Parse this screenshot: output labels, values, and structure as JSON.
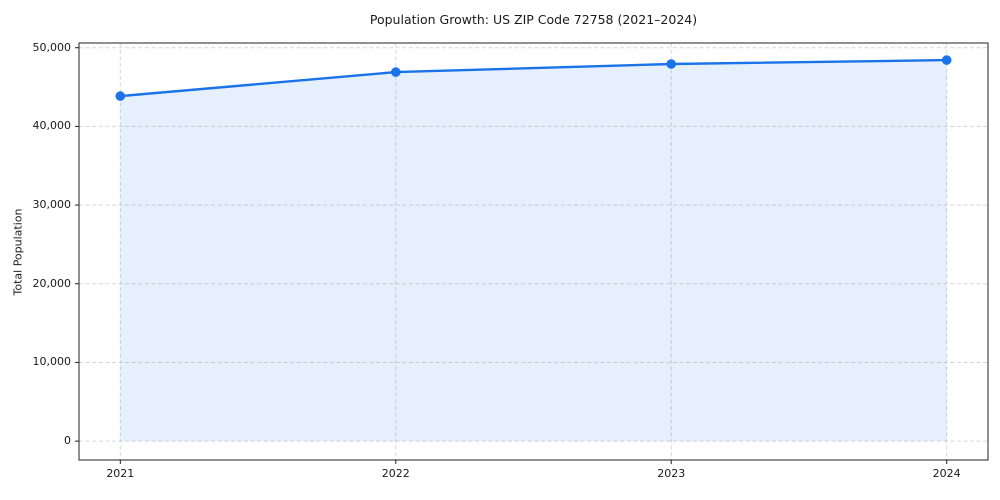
{
  "chart_data": {
    "type": "area",
    "title": "Population Growth: US ZIP Code 72758 (2021–2024)",
    "xlabel": "",
    "ylabel": "Total Population",
    "x": [
      2021,
      2022,
      2023,
      2024
    ],
    "x_labels": [
      "2021",
      "2022",
      "2023",
      "2024"
    ],
    "series": [
      {
        "name": "Total Population",
        "values": [
          43850,
          46900,
          47925,
          48425
        ]
      }
    ],
    "xlim": [
      2020.85,
      2024.15
    ],
    "ylim": [
      -2400,
      50600
    ],
    "yticks": [
      0,
      10000,
      20000,
      30000,
      40000,
      50000
    ],
    "ytick_labels": [
      "0",
      "10,000",
      "20,000",
      "30,000",
      "40,000",
      "50,000"
    ],
    "grid": true,
    "grid_style": "dashed",
    "legend_position": "none",
    "fill_baseline": 0,
    "colors": {
      "line": "#1a73e8",
      "marker": "#1a73e8",
      "fill": "rgba(26,115,232,0.11)",
      "grid": "#d2d2d2",
      "spine": "#222222",
      "text": "#1a1a1a",
      "background": "#ffffff"
    }
  }
}
